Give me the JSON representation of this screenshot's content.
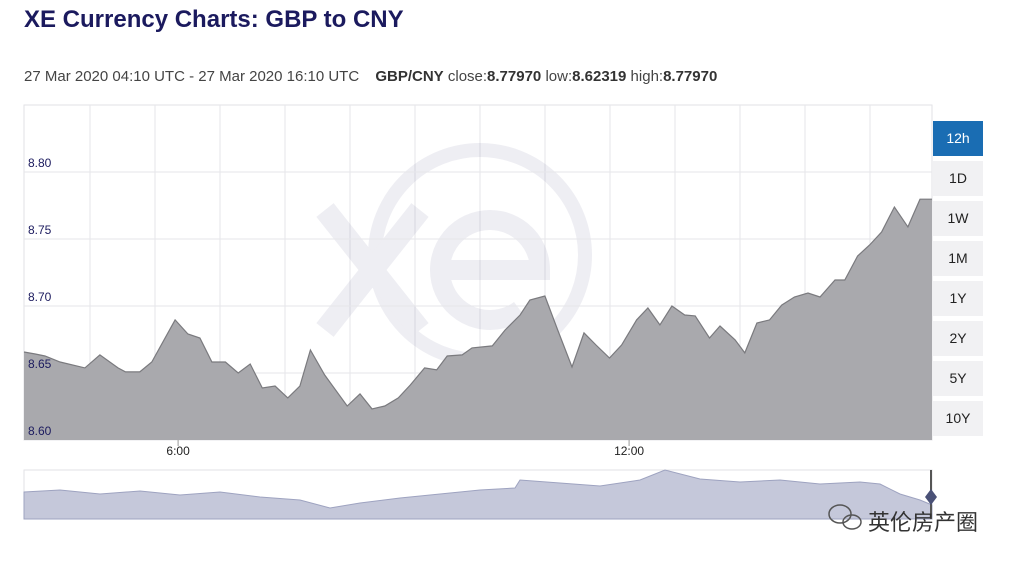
{
  "header": {
    "title": "XE Currency Charts: GBP to CNY"
  },
  "info": {
    "range": "27 Mar 2020 04:10 UTC - 27 Mar 2020 16:10 UTC",
    "pair": "GBP/CNY",
    "close_label": "close:",
    "close": "8.77970",
    "low_label": "low:",
    "low": "8.62319",
    "high_label": "high:",
    "high": "8.77970"
  },
  "buttons": [
    "12h",
    "1D",
    "1W",
    "1M",
    "1Y",
    "2Y",
    "5Y",
    "10Y"
  ],
  "selected": "12h",
  "watermark": "英伦房产圈",
  "chart_data": {
    "type": "area",
    "color": "#a9a9ad",
    "line_color": "#7a7a7e",
    "grid": true,
    "x": [
      3.95,
      4.1,
      4.23,
      4.43,
      4.76,
      4.96,
      5.2,
      5.3,
      5.49,
      5.65,
      5.96,
      6.13,
      6.29,
      6.45,
      6.63,
      6.8,
      6.96,
      7.12,
      7.29,
      7.46,
      7.62,
      7.76,
      7.95,
      8.25,
      8.42,
      8.58,
      8.75,
      8.93,
      9.09,
      9.28,
      9.44,
      9.58,
      9.78,
      9.91,
      10.18,
      10.35,
      10.55,
      10.68,
      10.88,
      11.05,
      11.24,
      11.4,
      11.56,
      11.74,
      11.9,
      12.1,
      12.25,
      12.41,
      12.57,
      12.74,
      12.88,
      13.07,
      13.21,
      13.41,
      13.54,
      13.7,
      13.87,
      14.03,
      14.2,
      14.38,
      14.54,
      14.74,
      14.87,
      15.04,
      15.2,
      15.36,
      15.53,
      15.71,
      15.87,
      16.03
    ],
    "values": [
      8.6657,
      8.6642,
      8.6627,
      8.6582,
      8.6538,
      8.6635,
      8.6538,
      8.6508,
      8.6508,
      8.6582,
      8.6896,
      8.6791,
      8.6761,
      8.6582,
      8.6582,
      8.65,
      8.6567,
      8.6388,
      8.6403,
      8.6314,
      8.6403,
      8.6672,
      8.6485,
      8.6254,
      8.6344,
      8.6232,
      8.6254,
      8.6314,
      8.6411,
      8.6538,
      8.6523,
      8.6627,
      8.6635,
      8.6687,
      8.6702,
      8.6821,
      8.6933,
      8.7045,
      8.7075,
      8.6821,
      8.6545,
      8.6799,
      8.6709,
      8.6612,
      8.6709,
      8.6896,
      8.6985,
      8.6859,
      8.7,
      8.6933,
      8.6926,
      8.6761,
      8.6851,
      8.6747,
      8.665,
      8.6873,
      8.6896,
      8.7007,
      8.7067,
      8.7097,
      8.7067,
      8.7194,
      8.7194,
      8.7373,
      8.7455,
      8.7552,
      8.7739,
      8.759,
      8.7797,
      8.7797
    ],
    "xlim": [
      3.95,
      16.03
    ],
    "xticks": [
      {
        "value": 6,
        "label": "6:00"
      },
      {
        "value": 12,
        "label": "12:00"
      }
    ],
    "ylim": [
      8.6,
      8.85
    ],
    "yticks": [
      {
        "value": 8.6,
        "label": "8.60"
      },
      {
        "value": 8.65,
        "label": "8.65"
      },
      {
        "value": 8.7,
        "label": "8.70"
      },
      {
        "value": 8.75,
        "label": "8.75"
      },
      {
        "value": 8.8,
        "label": "8.80"
      }
    ]
  }
}
